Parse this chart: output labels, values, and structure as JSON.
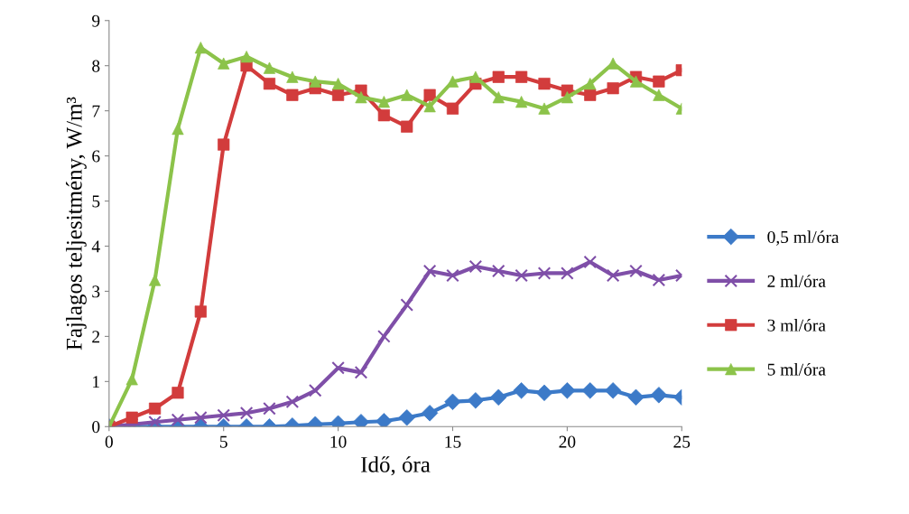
{
  "chart_data": {
    "type": "line",
    "xlabel": "Idő, óra",
    "ylabel": "Fajlagos teljesitmény, W/m³",
    "x": [
      0,
      1,
      2,
      3,
      4,
      5,
      6,
      7,
      8,
      9,
      10,
      11,
      12,
      13,
      14,
      15,
      16,
      17,
      18,
      19,
      20,
      21,
      22,
      23,
      24,
      25
    ],
    "xlim": [
      0,
      25
    ],
    "xticks": [
      0,
      5,
      10,
      15,
      20,
      25
    ],
    "ylim": [
      0,
      9
    ],
    "yticks": [
      0,
      1,
      2,
      3,
      4,
      5,
      6,
      7,
      8,
      9
    ],
    "grid": false,
    "legend": "right",
    "line_style": "solid",
    "series": [
      {
        "name": "0,5 ml/óra",
        "color": "#3c7ac8",
        "marker": "diamond",
        "values": [
          0,
          0,
          0,
          0,
          0,
          0,
          0,
          0,
          0.02,
          0.05,
          0.07,
          0.1,
          0.12,
          0.2,
          0.3,
          0.55,
          0.58,
          0.65,
          0.8,
          0.75,
          0.8,
          0.8,
          0.8,
          0.65,
          0.7,
          0.65
        ]
      },
      {
        "name": "2 ml/óra",
        "color": "#7f4fa8",
        "marker": "cross",
        "values": [
          0,
          0.05,
          0.1,
          0.15,
          0.2,
          0.25,
          0.3,
          0.4,
          0.55,
          0.8,
          1.3,
          1.2,
          2.0,
          2.7,
          3.45,
          3.35,
          3.55,
          3.45,
          3.35,
          3.4,
          3.4,
          3.65,
          3.35,
          3.45,
          3.25,
          3.35
        ]
      },
      {
        "name": "3 ml/óra",
        "color": "#d23c3c",
        "marker": "square",
        "values": [
          0,
          0.2,
          0.4,
          0.75,
          2.55,
          6.25,
          8.0,
          7.6,
          7.35,
          7.5,
          7.35,
          7.45,
          6.9,
          6.65,
          7.35,
          7.05,
          7.6,
          7.75,
          7.75,
          7.6,
          7.45,
          7.35,
          7.5,
          7.75,
          7.65,
          7.9
        ]
      },
      {
        "name": "5 ml/óra",
        "color": "#8cc34a",
        "marker": "triangle",
        "values": [
          0,
          1.05,
          3.25,
          6.6,
          8.4,
          8.05,
          8.2,
          7.95,
          7.75,
          7.65,
          7.6,
          7.3,
          7.2,
          7.35,
          7.1,
          7.65,
          7.75,
          7.3,
          7.2,
          7.05,
          7.3,
          7.6,
          8.05,
          7.65,
          7.35,
          7.05
        ]
      }
    ]
  }
}
